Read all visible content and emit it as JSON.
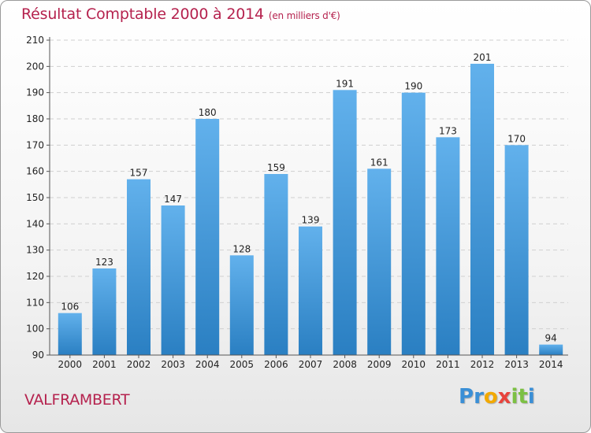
{
  "header": {
    "title": "Résultat Comptable 2000 à 2014",
    "subtitle": "(en milliers d'€)"
  },
  "footer": {
    "commune": "VALFRAMBERT",
    "logo_letters": [
      {
        "char": "P",
        "color": "#3a8fd6"
      },
      {
        "char": "r",
        "color": "#3a8fd6"
      },
      {
        "char": "o",
        "color": "#f2a900"
      },
      {
        "char": "x",
        "color": "#e8433c"
      },
      {
        "char": "i",
        "color": "#7cc043"
      },
      {
        "char": "t",
        "color": "#7cc043"
      },
      {
        "char": "i",
        "color": "#3a8fd6"
      }
    ]
  },
  "colors": {
    "accent": "#b5224e",
    "bar_top": "#62b1ec",
    "bar_bottom": "#2a7fc2"
  },
  "chart_data": {
    "type": "bar",
    "title": "Résultat Comptable 2000 à 2014",
    "subtitle": "(en milliers d'€)",
    "categories": [
      "2000",
      "2001",
      "2002",
      "2003",
      "2004",
      "2005",
      "2006",
      "2007",
      "2008",
      "2009",
      "2010",
      "2011",
      "2012",
      "2013",
      "2014"
    ],
    "values": [
      106,
      123,
      157,
      147,
      180,
      128,
      159,
      139,
      191,
      161,
      190,
      173,
      201,
      170,
      94
    ],
    "ylim": [
      90,
      210
    ],
    "yticks": [
      90,
      100,
      110,
      120,
      130,
      140,
      150,
      160,
      170,
      180,
      190,
      200,
      210
    ],
    "grid": true,
    "xlabel": "",
    "ylabel": ""
  }
}
